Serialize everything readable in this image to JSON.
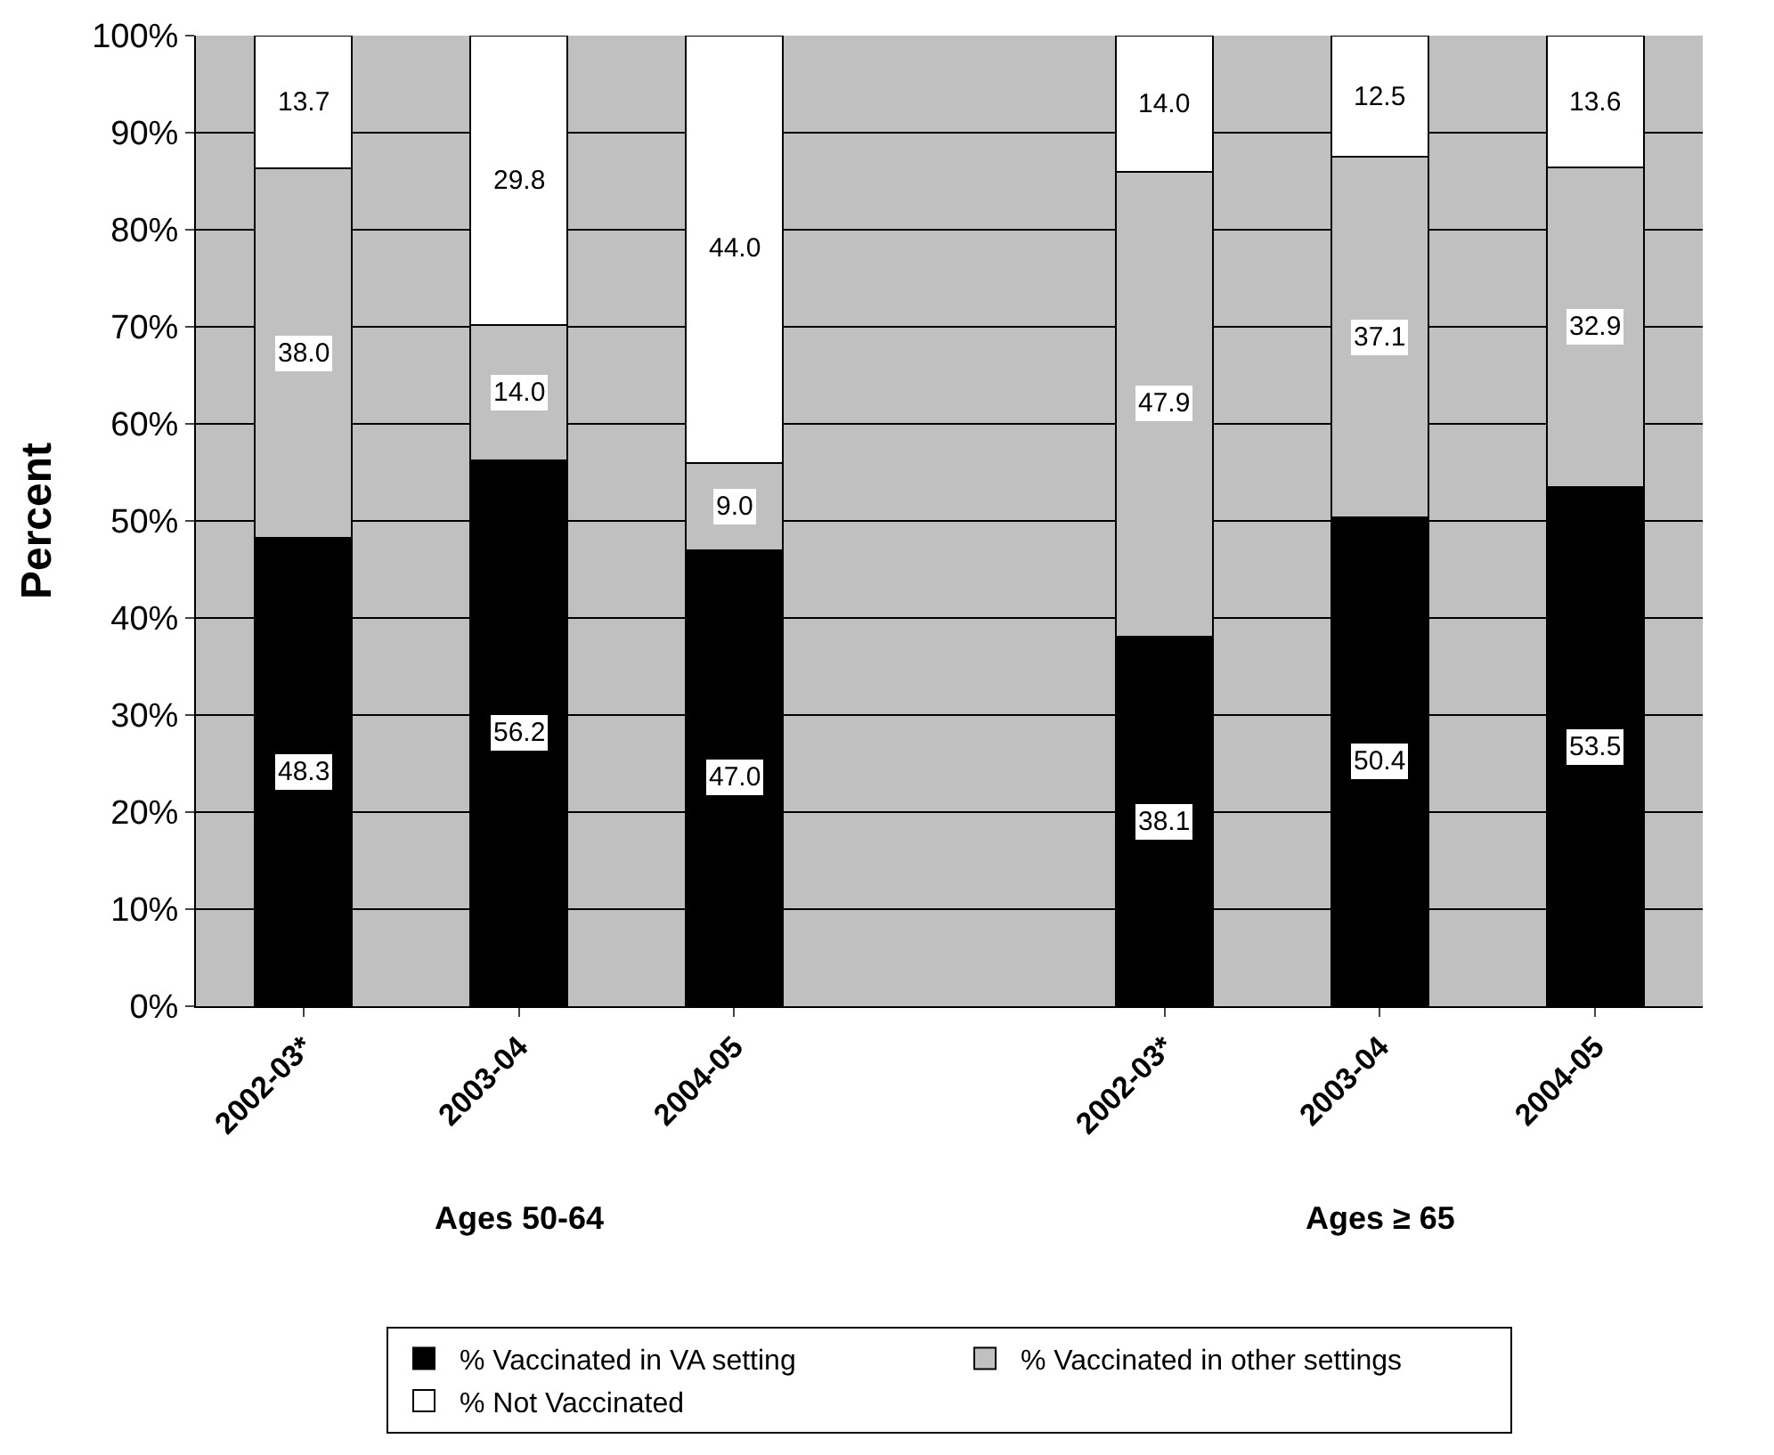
{
  "chart_data": {
    "type": "bar",
    "stacked": true,
    "ylabel": "Percent",
    "categories": [
      "2002-03*",
      "2003-04",
      "2004-05",
      null,
      "2002-03*",
      "2003-04",
      "2004-05"
    ],
    "series": [
      {
        "name": "% Vaccinated in VA setting",
        "color": "#000000",
        "values": [
          48.3,
          56.2,
          47.0,
          null,
          38.1,
          50.4,
          53.5
        ],
        "value_labels": [
          "48.3",
          "56.2",
          "47.0",
          null,
          "38.1",
          "50.4",
          "53.5"
        ]
      },
      {
        "name": "% Vaccinated in other settings",
        "color": "#c0c0c0",
        "values": [
          38.0,
          14.0,
          9.0,
          null,
          47.9,
          37.1,
          32.9
        ],
        "value_labels": [
          "38.0",
          "14.0",
          "9.0",
          null,
          "47.9",
          "37.1",
          "32.9"
        ]
      },
      {
        "name": "% Not Vaccinated",
        "color": "#ffffff",
        "values": [
          13.7,
          29.8,
          44.0,
          null,
          14.0,
          12.5,
          13.6
        ],
        "value_labels": [
          "13.7",
          "29.8",
          "44.0",
          null,
          "14.0",
          "12.5",
          "13.6"
        ]
      }
    ],
    "ylim": [
      0,
      100
    ],
    "yticks": [
      {
        "value": 0,
        "label": "0%"
      },
      {
        "value": 10,
        "label": "10%"
      },
      {
        "value": 20,
        "label": "20%"
      },
      {
        "value": 30,
        "label": "30%"
      },
      {
        "value": 40,
        "label": "40%"
      },
      {
        "value": 50,
        "label": "50%"
      },
      {
        "value": 60,
        "label": "60%"
      },
      {
        "value": 70,
        "label": "70%"
      },
      {
        "value": 80,
        "label": "80%"
      },
      {
        "value": 90,
        "label": "90%"
      },
      {
        "value": 100,
        "label": "100%"
      }
    ],
    "grid": "y",
    "legend": "bottom",
    "annotations": [
      "Ages 50-64",
      "Ages ≥ 65"
    ]
  }
}
